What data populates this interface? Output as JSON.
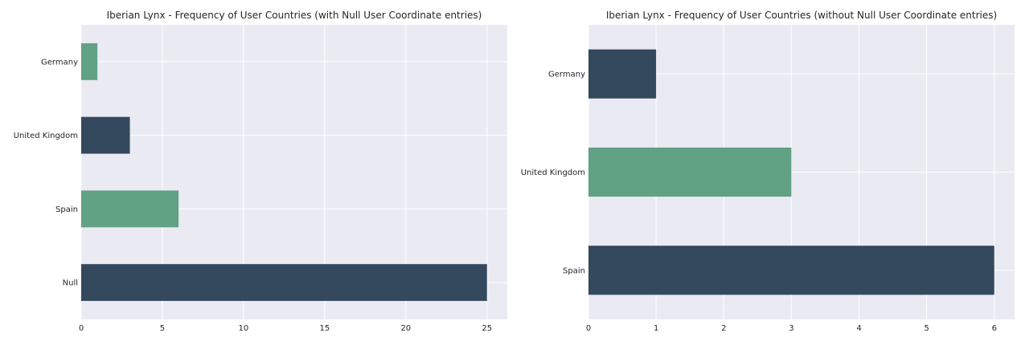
{
  "chart_data": [
    {
      "type": "bar",
      "orientation": "horizontal",
      "title": "Iberian Lynx - Frequency of User Countries (with Null User Coordinate entries)",
      "categories": [
        "Null",
        "Spain",
        "United Kingdom",
        "Germany"
      ],
      "values": [
        25,
        6,
        3,
        1
      ],
      "bar_colors": [
        "#34495e",
        "#61a184",
        "#34495e",
        "#61a184"
      ],
      "xticks": [
        "0",
        "5",
        "10",
        "15",
        "20",
        "25"
      ],
      "xlim": [
        0,
        26.25
      ],
      "xlabel": "",
      "ylabel": "",
      "grid": true
    },
    {
      "type": "bar",
      "orientation": "horizontal",
      "title": "Iberian Lynx - Frequency of User Countries (without Null User Coordinate entries)",
      "categories": [
        "Spain",
        "United Kingdom",
        "Germany"
      ],
      "values": [
        6,
        3,
        1
      ],
      "bar_colors": [
        "#34495e",
        "#61a184",
        "#34495e"
      ],
      "xticks": [
        "0",
        "1",
        "2",
        "3",
        "4",
        "5",
        "6"
      ],
      "xlim": [
        0,
        6.3
      ],
      "xlabel": "",
      "ylabel": "",
      "grid": true
    }
  ]
}
